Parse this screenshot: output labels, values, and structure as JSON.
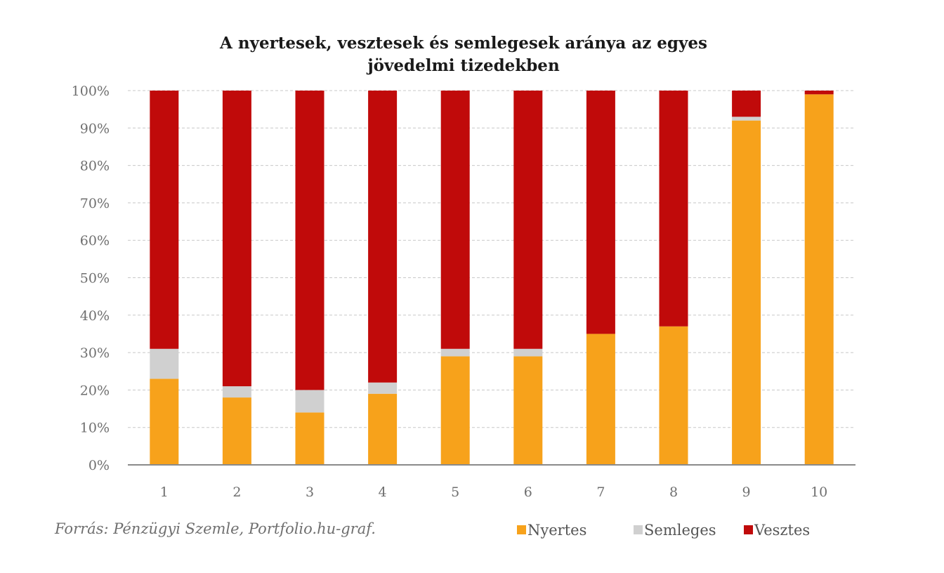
{
  "chart_data": {
    "type": "bar",
    "stacked": true,
    "title": "A nyertesek,  vesztesek  és semlegesek  aránya az egyes",
    "title_line2": "jövedelmi tizedekben",
    "categories": [
      "1",
      "2",
      "3",
      "4",
      "5",
      "6",
      "7",
      "8",
      "9",
      "10"
    ],
    "series": [
      {
        "name": "Nyertes",
        "color": "#F7A21B",
        "values": [
          23,
          18,
          14,
          19,
          29,
          29,
          35,
          37,
          92,
          99
        ]
      },
      {
        "name": "Semleges",
        "color": "#D0D0D0",
        "values": [
          8,
          3,
          6,
          3,
          2,
          2,
          0,
          0,
          1,
          0
        ]
      },
      {
        "name": "Vesztes",
        "color": "#C00A0A",
        "values": [
          69,
          79,
          80,
          78,
          69,
          69,
          65,
          63,
          7,
          1
        ]
      }
    ],
    "y_ticks": [
      "0%",
      "10%",
      "20%",
      "30%",
      "40%",
      "50%",
      "60%",
      "70%",
      "80%",
      "90%",
      "100%"
    ],
    "ylim": [
      0,
      100
    ],
    "grid": true,
    "legend_position": "bottom-right",
    "source": "Forrás: Pénzügyi Szemle, Portfolio.hu-graf."
  }
}
